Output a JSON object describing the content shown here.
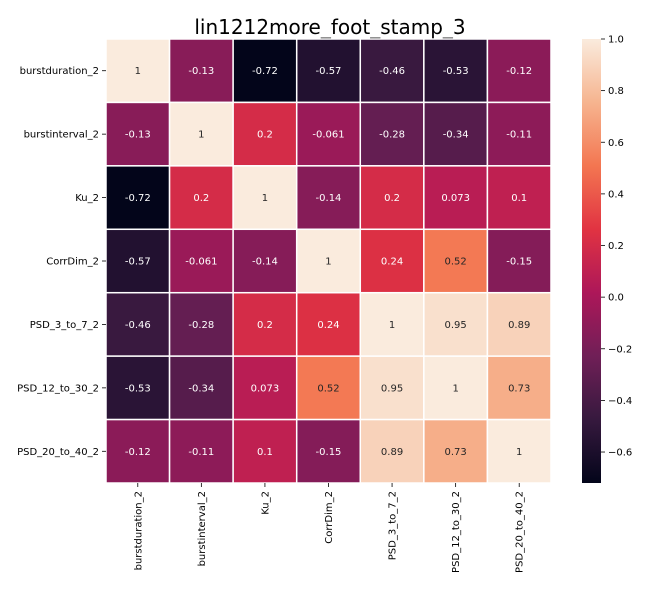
{
  "chart_data": {
    "type": "heatmap",
    "title": "lin1212more_foot_stamp_3",
    "xlabel": "",
    "ylabel": "",
    "rows": [
      "burstduration_2",
      "burstinterval_2",
      "Ku_2",
      "CorrDim_2",
      "PSD_3_to_7_2",
      "PSD_12_to_30_2",
      "PSD_20_to_40_2"
    ],
    "columns": [
      "burstduration_2",
      "burstinterval_2",
      "Ku_2",
      "CorrDim_2",
      "PSD_3_to_7_2",
      "PSD_12_to_30_2",
      "PSD_20_to_40_2"
    ],
    "values": [
      [
        1,
        -0.13,
        -0.72,
        -0.57,
        -0.46,
        -0.53,
        -0.12
      ],
      [
        -0.13,
        1,
        0.2,
        -0.061,
        -0.28,
        -0.34,
        -0.11
      ],
      [
        -0.72,
        0.2,
        1,
        -0.14,
        0.2,
        0.073,
        0.1
      ],
      [
        -0.57,
        -0.061,
        -0.14,
        1,
        0.24,
        0.52,
        -0.15
      ],
      [
        -0.46,
        -0.28,
        0.2,
        0.24,
        1,
        0.95,
        0.89
      ],
      [
        -0.53,
        -0.34,
        0.073,
        0.52,
        0.95,
        1,
        0.73
      ],
      [
        -0.12,
        -0.11,
        0.1,
        -0.15,
        0.89,
        0.73,
        1
      ]
    ],
    "value_labels": [
      [
        "1",
        "-0.13",
        "-0.72",
        "-0.57",
        "-0.46",
        "-0.53",
        "-0.12"
      ],
      [
        "-0.13",
        "1",
        "0.2",
        "-0.061",
        "-0.28",
        "-0.34",
        "-0.11"
      ],
      [
        "-0.72",
        "0.2",
        "1",
        "-0.14",
        "0.2",
        "0.073",
        "0.1"
      ],
      [
        "-0.57",
        "-0.061",
        "-0.14",
        "1",
        "0.24",
        "0.52",
        "-0.15"
      ],
      [
        "-0.46",
        "-0.28",
        "0.2",
        "0.24",
        "1",
        "0.95",
        "0.89"
      ],
      [
        "-0.53",
        "-0.34",
        "0.073",
        "0.52",
        "0.95",
        "1",
        "0.73"
      ],
      [
        "-0.12",
        "-0.11",
        "0.1",
        "-0.15",
        "0.89",
        "0.73",
        "1"
      ]
    ],
    "colorbar": {
      "min": -0.72,
      "max": 1.0,
      "ticks": [
        1.0,
        0.8,
        0.6,
        0.4,
        0.2,
        0.0,
        -0.2,
        -0.4,
        -0.6
      ],
      "tick_labels": [
        "1.0",
        "0.8",
        "0.6",
        "0.4",
        "0.2",
        "0.0",
        "−0.2",
        "−0.4",
        "−0.6"
      ],
      "colormap": "rocket",
      "stops": [
        "#03051a",
        "#36193e",
        "#701f57",
        "#ad1759",
        "#e13342",
        "#f37651",
        "#f6b48f",
        "#faebdd"
      ]
    },
    "cell_gap_color": "#ffffff",
    "grid": false,
    "legend": "colorbar-right"
  }
}
